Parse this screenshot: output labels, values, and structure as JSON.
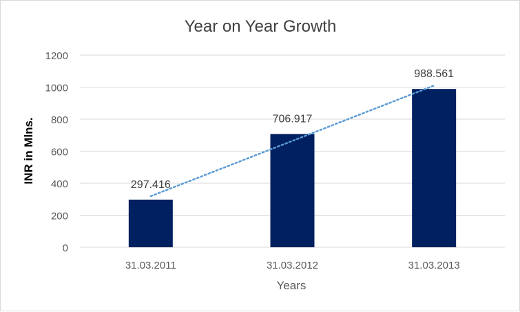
{
  "chart_data": {
    "type": "bar",
    "title": "Year on Year Growth",
    "xlabel": "Years",
    "ylabel": "INR in Mlns.",
    "categories": [
      "31.03.2011",
      "31.03.2012",
      "31.03.2013"
    ],
    "values": [
      297.416,
      706.917,
      988.561
    ],
    "data_labels": [
      "297.416",
      "706.917",
      "988.561"
    ],
    "ylim": [
      0,
      1200
    ],
    "yticks": [
      0,
      200,
      400,
      600,
      800,
      1000,
      1200
    ],
    "grid": true,
    "trendline": "linear",
    "colors": {
      "bar": "#002060",
      "trendline": "#5b9bd5",
      "grid": "#d9d9d9",
      "text": "#595959",
      "title": "#404040"
    }
  }
}
